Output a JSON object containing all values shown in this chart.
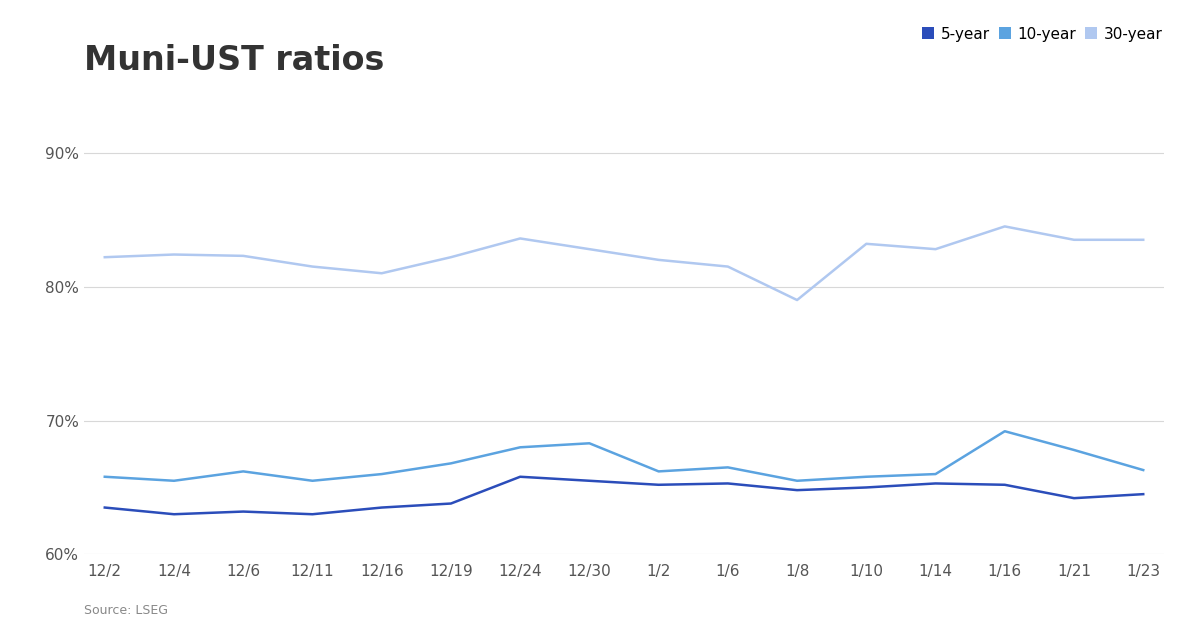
{
  "title": "Muni-UST ratios",
  "source": "Source: LSEG",
  "x_labels": [
    "12/2",
    "12/4",
    "12/6",
    "12/11",
    "12/16",
    "12/19",
    "12/24",
    "12/30",
    "1/2",
    "1/6",
    "1/8",
    "1/10",
    "1/14",
    "1/16",
    "1/21",
    "1/23"
  ],
  "series_5yr": [
    63.5,
    63.0,
    63.2,
    63.0,
    63.5,
    63.8,
    65.8,
    65.5,
    65.2,
    65.3,
    64.8,
    65.0,
    65.3,
    65.2,
    64.2,
    64.5
  ],
  "series_10yr": [
    65.8,
    65.5,
    66.2,
    65.5,
    66.0,
    66.8,
    68.0,
    68.3,
    66.2,
    66.5,
    65.5,
    65.8,
    66.0,
    69.2,
    67.8,
    66.3
  ],
  "series_30yr": [
    82.2,
    82.4,
    82.3,
    81.5,
    81.0,
    82.2,
    83.6,
    82.8,
    82.0,
    81.5,
    79.0,
    83.2,
    82.8,
    84.5,
    83.5,
    83.5
  ],
  "color_5yr": "#2b4dba",
  "color_10yr": "#5ba3e0",
  "color_30yr": "#b0c8f0",
  "ylim": [
    60,
    92
  ],
  "yticks": [
    60,
    70,
    80,
    90
  ],
  "background_color": "#ffffff",
  "grid_color": "#d8d8d8",
  "title_fontsize": 24,
  "label_fontsize": 11,
  "legend_fontsize": 11,
  "title_color": "#333333",
  "tick_color": "#555555"
}
